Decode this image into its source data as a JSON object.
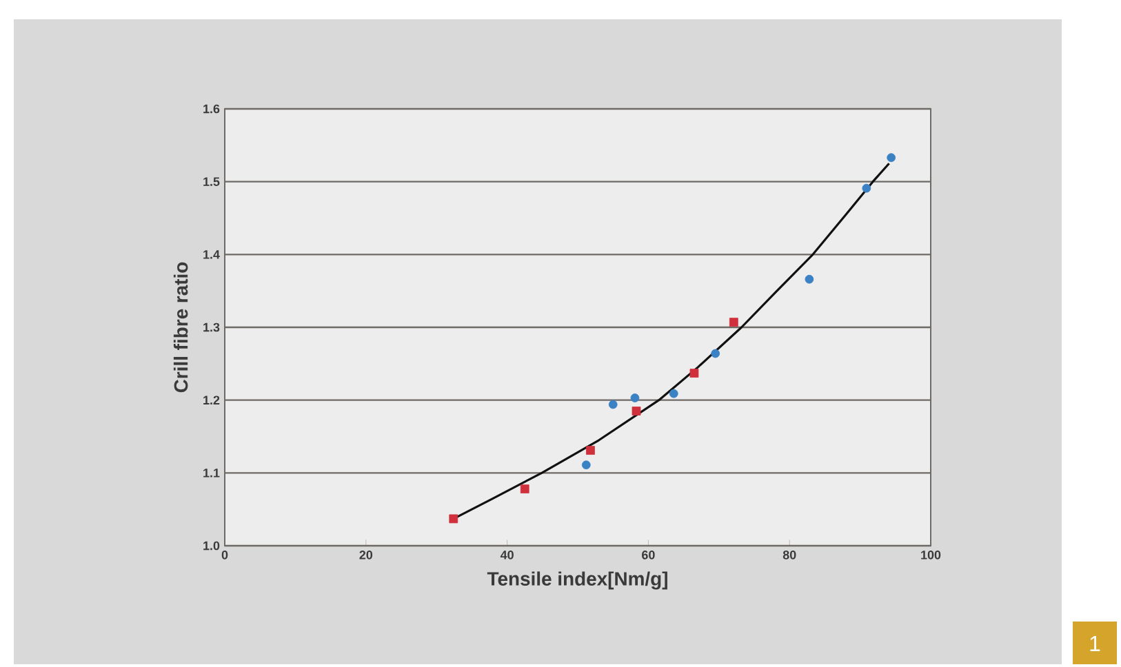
{
  "chart_data": {
    "type": "scatter",
    "xlabel": "Tensile index[Nm/g]",
    "ylabel": "Crill fibre ratio",
    "xlim": [
      0,
      100
    ],
    "ylim": [
      1.0,
      1.6
    ],
    "xticks": [
      0,
      20,
      40,
      60,
      80,
      100
    ],
    "yticks": [
      {
        "value": 1.0,
        "label": "1.0"
      },
      1.1,
      1.2,
      1.3,
      1.4,
      1.5,
      1.6
    ],
    "grid": "y",
    "series": [
      {
        "color": "#3b82c4",
        "marker": "circle",
        "x": [
          51.2,
          55.0,
          58.1,
          63.6,
          69.5,
          82.8,
          90.9,
          94.4
        ],
        "values": [
          1.111,
          1.194,
          1.203,
          1.209,
          1.264,
          1.366,
          1.491,
          1.533
        ]
      },
      {
        "color": "#d0303c",
        "marker": "square",
        "x": [
          32.4,
          42.5,
          51.8,
          58.3,
          66.5,
          72.1
        ],
        "values": [
          1.037,
          1.078,
          1.131,
          1.185,
          1.237,
          1.307
        ]
      },
      {
        "type": "line",
        "color": "#111111",
        "marker": "none",
        "line_style": "solid",
        "x": [
          32.4,
          38,
          44.9,
          53,
          61.5,
          67,
          73.2,
          78,
          83.3,
          88,
          91.8,
          94.1
        ],
        "values": [
          1.037,
          1.065,
          1.1,
          1.145,
          1.2,
          1.245,
          1.3,
          1.348,
          1.4,
          1.455,
          1.5,
          1.525
        ]
      }
    ],
    "annotations": [
      "1"
    ]
  }
}
